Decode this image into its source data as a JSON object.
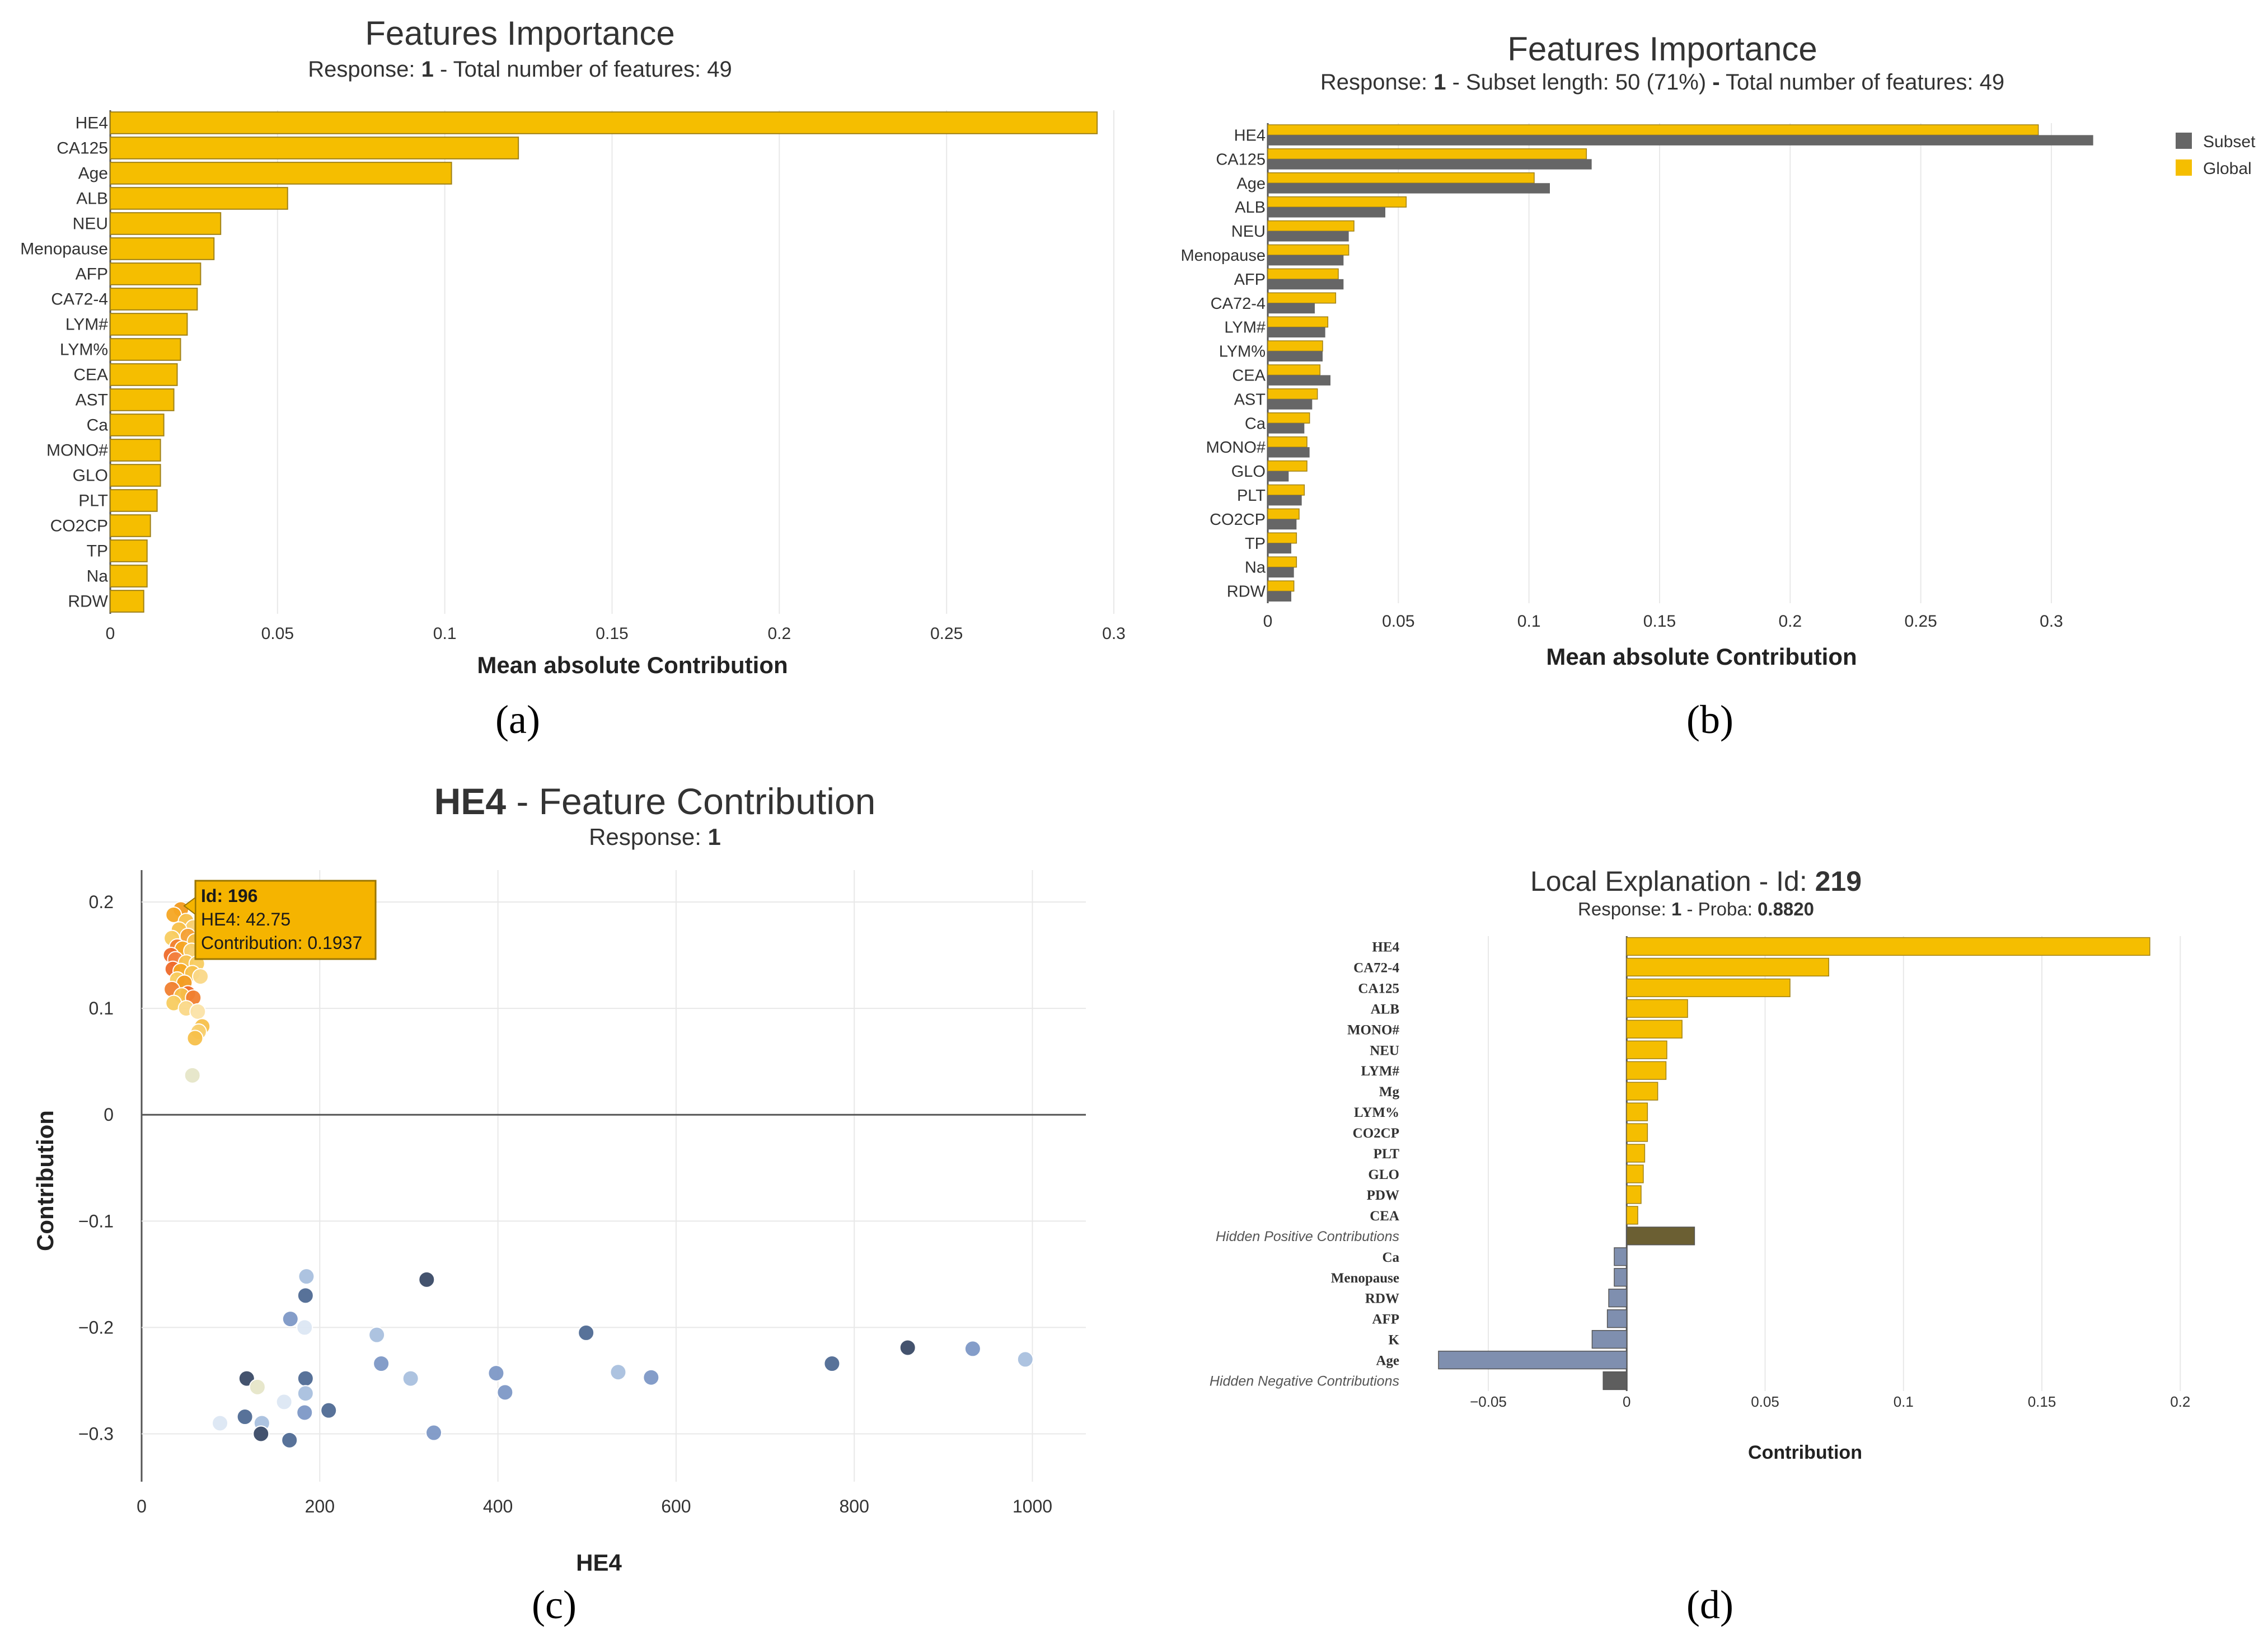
{
  "colors": {
    "global": "#F5BE00",
    "global_stroke": "#A08219",
    "subset": "#666666",
    "grid": "#E8E8E8",
    "axis": "#555555",
    "hidden_pos": "#6B5F33",
    "hidden_neg": "#5E5E5E",
    "negative": "#7F8FAF",
    "text": "#333333",
    "tooltip_bg": "#F5B400",
    "tooltip_border": "#9A7600"
  },
  "panels": [
    {
      "letter_label": "(a)"
    },
    {
      "letter_label": "(b)"
    },
    {
      "letter_label": "(c)"
    },
    {
      "letter_label": "(d)"
    }
  ],
  "chart_data": [
    {
      "id": "a",
      "type": "bar",
      "orientation": "horizontal",
      "title": "Features Importance",
      "subtitle": {
        "prefix": "Response: ",
        "response": "1",
        "rest": " - Total number of features: 49"
      },
      "xlabel": "Mean absolute Contribution",
      "ylabel": "",
      "xlim": [
        0,
        0.3
      ],
      "xticks": [
        0,
        0.05,
        0.1,
        0.15,
        0.2,
        0.25,
        0.3
      ],
      "xtick_labels": [
        "0",
        "0.05",
        "0.1",
        "0.15",
        "0.2",
        "0.25",
        "0.3"
      ],
      "categories": [
        "HE4",
        "CA125",
        "Age",
        "ALB",
        "NEU",
        "Menopause",
        "AFP",
        "CA72-4",
        "LYM#",
        "LYM%",
        "CEA",
        "AST",
        "Ca",
        "MONO#",
        "GLO",
        "PLT",
        "CO2CP",
        "TP",
        "Na",
        "RDW"
      ],
      "values": [
        0.295,
        0.122,
        0.102,
        0.053,
        0.033,
        0.031,
        0.027,
        0.026,
        0.023,
        0.021,
        0.02,
        0.019,
        0.016,
        0.015,
        0.015,
        0.014,
        0.012,
        0.011,
        0.011,
        0.01
      ]
    },
    {
      "id": "b",
      "type": "bar",
      "orientation": "horizontal",
      "title": "Features Importance",
      "subtitle": {
        "prefix": "Response: ",
        "response": "1",
        "mid": " - Subset length: 50 (71%) ",
        "dash": "-",
        "rest": " Total number of features: 49"
      },
      "xlabel": "Mean absolute Contribution",
      "ylabel": "",
      "xlim": [
        0,
        0.3
      ],
      "xticks": [
        0,
        0.05,
        0.1,
        0.15,
        0.2,
        0.25,
        0.3
      ],
      "xtick_labels": [
        "0",
        "0.05",
        "0.1",
        "0.15",
        "0.2",
        "0.25",
        "0.3"
      ],
      "legend": {
        "position": "top-right",
        "entries": [
          "Subset",
          "Global"
        ]
      },
      "categories": [
        "HE4",
        "CA125",
        "Age",
        "ALB",
        "NEU",
        "Menopause",
        "AFP",
        "CA72-4",
        "LYM#",
        "LYM%",
        "CEA",
        "AST",
        "Ca",
        "MONO#",
        "GLO",
        "PLT",
        "CO2CP",
        "TP",
        "Na",
        "RDW"
      ],
      "series": [
        {
          "name": "Global",
          "values": [
            0.295,
            0.122,
            0.102,
            0.053,
            0.033,
            0.031,
            0.027,
            0.026,
            0.023,
            0.021,
            0.02,
            0.019,
            0.016,
            0.015,
            0.015,
            0.014,
            0.012,
            0.011,
            0.011,
            0.01
          ]
        },
        {
          "name": "Subset",
          "values": [
            0.316,
            0.124,
            0.108,
            0.045,
            0.031,
            0.029,
            0.029,
            0.018,
            0.022,
            0.021,
            0.024,
            0.017,
            0.014,
            0.016,
            0.008,
            0.013,
            0.011,
            0.009,
            0.01,
            0.009
          ]
        }
      ]
    },
    {
      "id": "c",
      "type": "scatter",
      "title": {
        "bold": "HE4",
        "rest": " - Feature Contribution"
      },
      "subtitle": {
        "prefix": "Response: ",
        "response": "1"
      },
      "xlabel": "HE4",
      "ylabel": "Contribution",
      "xlim": [
        0,
        1060
      ],
      "ylim": [
        -0.345,
        0.23
      ],
      "xticks": [
        0,
        200,
        400,
        600,
        800,
        1000
      ],
      "xtick_labels": [
        "0",
        "200",
        "400",
        "600",
        "800",
        "1000"
      ],
      "yticks": [
        0.2,
        0.1,
        0,
        -0.1,
        -0.2,
        -0.3
      ],
      "ytick_labels": [
        "0.2",
        "0.1",
        "0",
        "−0.1",
        "−0.2",
        "−0.3"
      ],
      "tooltip": {
        "id_label": "Id: 196",
        "line1": "HE4: 42.75",
        "line2": "Contribution: 0.1937",
        "x": 42.75,
        "y": 0.1937
      },
      "points": [
        {
          "x": 44,
          "y": 0.193,
          "c": "#F29A1F"
        },
        {
          "x": 36,
          "y": 0.188,
          "c": "#F5A623"
        },
        {
          "x": 50,
          "y": 0.182,
          "c": "#F7C04A"
        },
        {
          "x": 58,
          "y": 0.176,
          "c": "#F8D070"
        },
        {
          "x": 42,
          "y": 0.174,
          "c": "#F7C04A"
        },
        {
          "x": 34,
          "y": 0.166,
          "c": "#F8CC60"
        },
        {
          "x": 52,
          "y": 0.168,
          "c": "#F4A035"
        },
        {
          "x": 60,
          "y": 0.163,
          "c": "#F7C04A"
        },
        {
          "x": 40,
          "y": 0.158,
          "c": "#F08030"
        },
        {
          "x": 46,
          "y": 0.156,
          "c": "#F5A623"
        },
        {
          "x": 56,
          "y": 0.154,
          "c": "#F8D070"
        },
        {
          "x": 33,
          "y": 0.15,
          "c": "#EE6A2A"
        },
        {
          "x": 38,
          "y": 0.146,
          "c": "#F28040"
        },
        {
          "x": 50,
          "y": 0.143,
          "c": "#F7C04A"
        },
        {
          "x": 62,
          "y": 0.142,
          "c": "#F8CC60"
        },
        {
          "x": 35,
          "y": 0.137,
          "c": "#EE6A2A"
        },
        {
          "x": 44,
          "y": 0.135,
          "c": "#F5A623"
        },
        {
          "x": 57,
          "y": 0.133,
          "c": "#F7C04A"
        },
        {
          "x": 66,
          "y": 0.13,
          "c": "#FAD888"
        },
        {
          "x": 40,
          "y": 0.127,
          "c": "#F8CC60"
        },
        {
          "x": 48,
          "y": 0.124,
          "c": "#F29A1F"
        },
        {
          "x": 34,
          "y": 0.118,
          "c": "#F08030"
        },
        {
          "x": 52,
          "y": 0.114,
          "c": "#EE6A2A"
        },
        {
          "x": 45,
          "y": 0.112,
          "c": "#F7C04A"
        },
        {
          "x": 58,
          "y": 0.11,
          "c": "#F08030"
        },
        {
          "x": 36,
          "y": 0.105,
          "c": "#F8CC60"
        },
        {
          "x": 50,
          "y": 0.1,
          "c": "#FAD888"
        },
        {
          "x": 63,
          "y": 0.097,
          "c": "#FBE3A8"
        },
        {
          "x": 68,
          "y": 0.083,
          "c": "#F7C04A"
        },
        {
          "x": 64,
          "y": 0.078,
          "c": "#F8D070"
        },
        {
          "x": 60,
          "y": 0.072,
          "c": "#F7C04A"
        },
        {
          "x": 57,
          "y": 0.037,
          "c": "#E6E6C8"
        },
        {
          "x": 185,
          "y": -0.152,
          "c": "#A9C0DE"
        },
        {
          "x": 184,
          "y": -0.17,
          "c": "#4F6A94"
        },
        {
          "x": 167,
          "y": -0.192,
          "c": "#7D98C6"
        },
        {
          "x": 183,
          "y": -0.2,
          "c": "#DCE7F3"
        },
        {
          "x": 320,
          "y": -0.155,
          "c": "#3A4A66"
        },
        {
          "x": 264,
          "y": -0.207,
          "c": "#A9C0DE"
        },
        {
          "x": 269,
          "y": -0.234,
          "c": "#7D98C6"
        },
        {
          "x": 302,
          "y": -0.248,
          "c": "#A9C0DE"
        },
        {
          "x": 499,
          "y": -0.205,
          "c": "#4F6A94"
        },
        {
          "x": 398,
          "y": -0.243,
          "c": "#7D98C6"
        },
        {
          "x": 408,
          "y": -0.261,
          "c": "#7D98C6"
        },
        {
          "x": 535,
          "y": -0.242,
          "c": "#A9C0DE"
        },
        {
          "x": 572,
          "y": -0.247,
          "c": "#7D98C6"
        },
        {
          "x": 775,
          "y": -0.234,
          "c": "#4F6A94"
        },
        {
          "x": 860,
          "y": -0.219,
          "c": "#3A4A66"
        },
        {
          "x": 933,
          "y": -0.22,
          "c": "#7D98C6"
        },
        {
          "x": 992,
          "y": -0.23,
          "c": "#A9C0DE"
        },
        {
          "x": 118,
          "y": -0.248,
          "c": "#3A4A66"
        },
        {
          "x": 130,
          "y": -0.256,
          "c": "#E6E6C8"
        },
        {
          "x": 184,
          "y": -0.248,
          "c": "#4F6A94"
        },
        {
          "x": 184,
          "y": -0.262,
          "c": "#A9C0DE"
        },
        {
          "x": 160,
          "y": -0.27,
          "c": "#DCE7F3"
        },
        {
          "x": 210,
          "y": -0.278,
          "c": "#4F6A94"
        },
        {
          "x": 183,
          "y": -0.28,
          "c": "#7D98C6"
        },
        {
          "x": 116,
          "y": -0.284,
          "c": "#4F6A94"
        },
        {
          "x": 135,
          "y": -0.29,
          "c": "#A9C0DE"
        },
        {
          "x": 88,
          "y": -0.29,
          "c": "#DCE7F3"
        },
        {
          "x": 134,
          "y": -0.3,
          "c": "#3A4A66"
        },
        {
          "x": 166,
          "y": -0.306,
          "c": "#4F6A94"
        },
        {
          "x": 328,
          "y": -0.299,
          "c": "#7D98C6"
        }
      ]
    },
    {
      "id": "d",
      "type": "bar",
      "orientation": "horizontal",
      "title": {
        "text": "Local Explanation - Id: ",
        "bold": "219"
      },
      "subtitle": {
        "prefix": "Response: ",
        "response": "1",
        "mid": " - Proba: ",
        "proba": "0.8820"
      },
      "xlabel": "Contribution",
      "ylabel": "",
      "xlim": [
        -0.068,
        0.205
      ],
      "xticks": [
        -0.05,
        0,
        0.05,
        0.1,
        0.15,
        0.2
      ],
      "xtick_labels": [
        "−0.05",
        "0",
        "0.05",
        "0.1",
        "0.15",
        "0.2"
      ],
      "categories": [
        "HE4",
        "CA72-4",
        "CA125",
        "ALB",
        "MONO#",
        "NEU",
        "LYM#",
        "Mg",
        "LYM%",
        "CO2CP",
        "PLT",
        "GLO",
        "PDW",
        "CEA",
        "Hidden Positive Contributions",
        "Ca",
        "Menopause",
        "RDW",
        "AFP",
        "K",
        "Age",
        "Hidden Negative Contributions"
      ],
      "values": [
        0.189,
        0.073,
        0.059,
        0.022,
        0.02,
        0.0145,
        0.0142,
        0.0112,
        0.0075,
        0.0075,
        0.0065,
        0.006,
        0.0052,
        0.004,
        0.0245,
        -0.0045,
        -0.0045,
        -0.0065,
        -0.007,
        -0.0125,
        -0.068,
        -0.0085
      ],
      "kinds": [
        "pos",
        "pos",
        "pos",
        "pos",
        "pos",
        "pos",
        "pos",
        "pos",
        "pos",
        "pos",
        "pos",
        "pos",
        "pos",
        "pos",
        "hidden_pos",
        "neg",
        "neg",
        "neg",
        "neg",
        "neg",
        "neg",
        "hidden_neg"
      ]
    }
  ]
}
